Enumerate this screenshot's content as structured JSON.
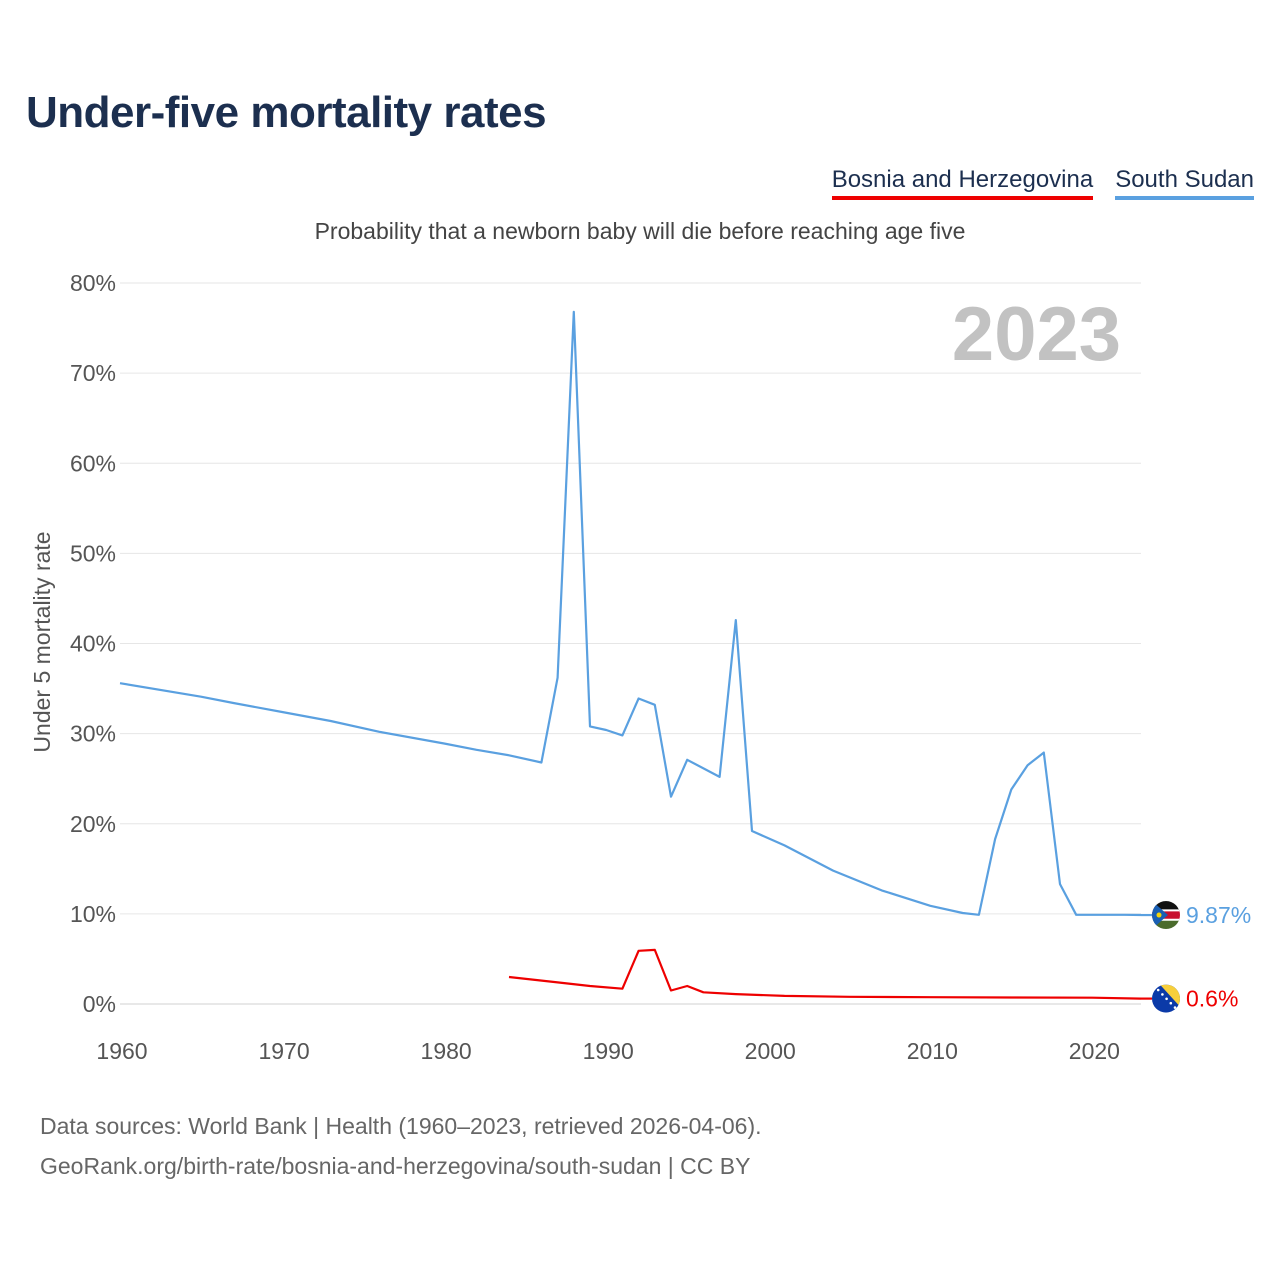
{
  "page": {
    "title": "Under-five mortality rates",
    "subtitle": "Probability that a newborn baby will die before reaching age five",
    "legend": [
      "Bosnia and Herzegovina",
      "South Sudan"
    ],
    "footer_line1": "Data sources: World Bank | Health (1960–2023, retrieved 2026-04-06).",
    "footer_line2": "GeoRank.org/birth-rate/bosnia-and-herzegovina/south-sudan | CC BY"
  },
  "chart_data": {
    "type": "line",
    "title": "Under-five mortality rates",
    "subtitle": "Probability that a newborn baby will die before reaching age five",
    "ylabel": "Under 5 mortality rate",
    "xlabel": "",
    "year_label": "2023",
    "xlim": [
      1960,
      2023
    ],
    "ylim": [
      0,
      80
    ],
    "x_ticks": [
      1960,
      1970,
      1980,
      1990,
      2000,
      2010,
      2020
    ],
    "y_ticks": [
      "0%",
      "10%",
      "20%",
      "30%",
      "40%",
      "50%",
      "60%",
      "70%",
      "80%"
    ],
    "grid": true,
    "series": [
      {
        "name": "South Sudan",
        "color": "#5aa0e0",
        "end_label": "9.87%",
        "flag": "south-sudan-flag-icon",
        "points": [
          [
            1960,
            35.6
          ],
          [
            1965,
            34.1
          ],
          [
            1967,
            33.4
          ],
          [
            1970,
            32.4
          ],
          [
            1973,
            31.4
          ],
          [
            1976,
            30.2
          ],
          [
            1980,
            28.9
          ],
          [
            1982,
            28.2
          ],
          [
            1984,
            27.6
          ],
          [
            1986,
            26.8
          ],
          [
            1987,
            36.2
          ],
          [
            1988,
            76.8
          ],
          [
            1989,
            30.8
          ],
          [
            1990,
            30.4
          ],
          [
            1991,
            29.8
          ],
          [
            1992,
            33.9
          ],
          [
            1993,
            33.2
          ],
          [
            1994,
            23.0
          ],
          [
            1995,
            27.1
          ],
          [
            1997,
            25.2
          ],
          [
            1998,
            42.6
          ],
          [
            1999,
            19.2
          ],
          [
            2001,
            17.6
          ],
          [
            2004,
            14.8
          ],
          [
            2007,
            12.6
          ],
          [
            2010,
            10.9
          ],
          [
            2012,
            10.1
          ],
          [
            2013,
            9.9
          ],
          [
            2014,
            18.3
          ],
          [
            2015,
            23.8
          ],
          [
            2016,
            26.5
          ],
          [
            2017,
            27.9
          ],
          [
            2018,
            13.3
          ],
          [
            2019,
            9.9
          ],
          [
            2020,
            9.9
          ],
          [
            2021,
            9.9
          ],
          [
            2022,
            9.9
          ],
          [
            2023,
            9.87
          ]
        ]
      },
      {
        "name": "Bosnia and Herzegovina",
        "color": "#ee0000",
        "end_label": "0.6%",
        "flag": "bosnia-flag-icon",
        "points": [
          [
            1984,
            3.0
          ],
          [
            1987,
            2.4
          ],
          [
            1989,
            2.0
          ],
          [
            1991,
            1.7
          ],
          [
            1992,
            5.9
          ],
          [
            1993,
            6.0
          ],
          [
            1994,
            1.5
          ],
          [
            1995,
            2.0
          ],
          [
            1996,
            1.3
          ],
          [
            1998,
            1.1
          ],
          [
            2001,
            0.9
          ],
          [
            2005,
            0.8
          ],
          [
            2010,
            0.75
          ],
          [
            2015,
            0.72
          ],
          [
            2020,
            0.7
          ],
          [
            2023,
            0.6
          ]
        ]
      }
    ]
  }
}
